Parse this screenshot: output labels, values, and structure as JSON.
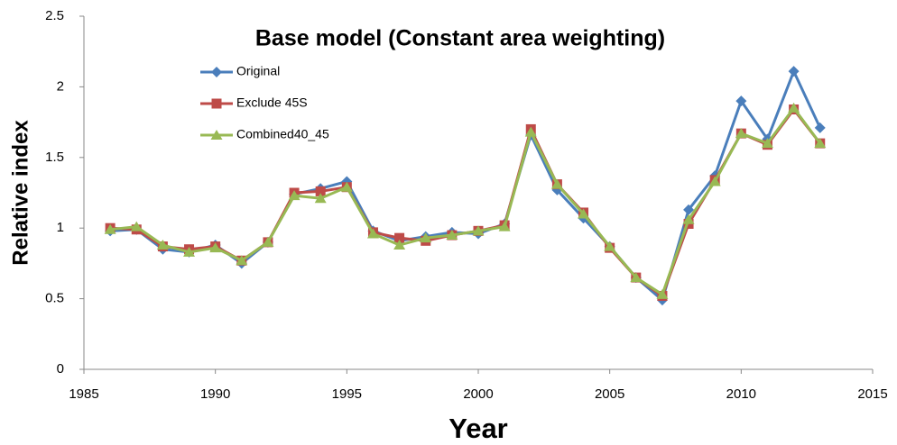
{
  "chart_data": {
    "type": "line",
    "title": "Base model (Constant area weighting)",
    "x_label": "Year",
    "y_label": "Relative index",
    "x": [
      1986,
      1987,
      1988,
      1989,
      1990,
      1991,
      1992,
      1993,
      1994,
      1995,
      1996,
      1997,
      1998,
      1999,
      2000,
      2001,
      2002,
      2003,
      2004,
      2005,
      2006,
      2007,
      2008,
      2009,
      2010,
      2011,
      2012,
      2013
    ],
    "series": [
      {
        "name": "Original",
        "color": "#4a7ebb",
        "marker": "diamond",
        "values": [
          0.98,
          0.99,
          0.85,
          0.83,
          0.88,
          0.75,
          0.9,
          1.24,
          1.28,
          1.33,
          0.98,
          0.91,
          0.94,
          0.97,
          0.96,
          1.03,
          1.66,
          1.27,
          1.07,
          0.87,
          0.65,
          0.49,
          1.13,
          1.37,
          1.9,
          1.63,
          2.11,
          1.71
        ]
      },
      {
        "name": "Exclude 45S",
        "color": "#be4b48",
        "marker": "square",
        "values": [
          1.0,
          0.99,
          0.87,
          0.85,
          0.87,
          0.77,
          0.9,
          1.25,
          1.26,
          1.29,
          0.97,
          0.93,
          0.91,
          0.95,
          0.98,
          1.02,
          1.7,
          1.31,
          1.11,
          0.86,
          0.65,
          0.52,
          1.03,
          1.34,
          1.67,
          1.59,
          1.84,
          1.6
        ]
      },
      {
        "name": "Combined40_45",
        "color": "#98b954",
        "marker": "triangle",
        "values": [
          0.99,
          1.01,
          0.88,
          0.83,
          0.86,
          0.77,
          0.9,
          1.23,
          1.21,
          1.29,
          0.96,
          0.88,
          0.93,
          0.95,
          0.98,
          1.01,
          1.68,
          1.31,
          1.1,
          0.87,
          0.65,
          0.53,
          1.06,
          1.33,
          1.67,
          1.6,
          1.85,
          1.6
        ]
      }
    ],
    "xlim": [
      1985,
      2015
    ],
    "xticks": [
      1985,
      1990,
      1995,
      2000,
      2005,
      2010,
      2015
    ],
    "ylim": [
      0,
      2.5
    ],
    "yticks": [
      0,
      0.5,
      1,
      1.5,
      2,
      2.5
    ],
    "grid": false,
    "legend": "top-left"
  }
}
